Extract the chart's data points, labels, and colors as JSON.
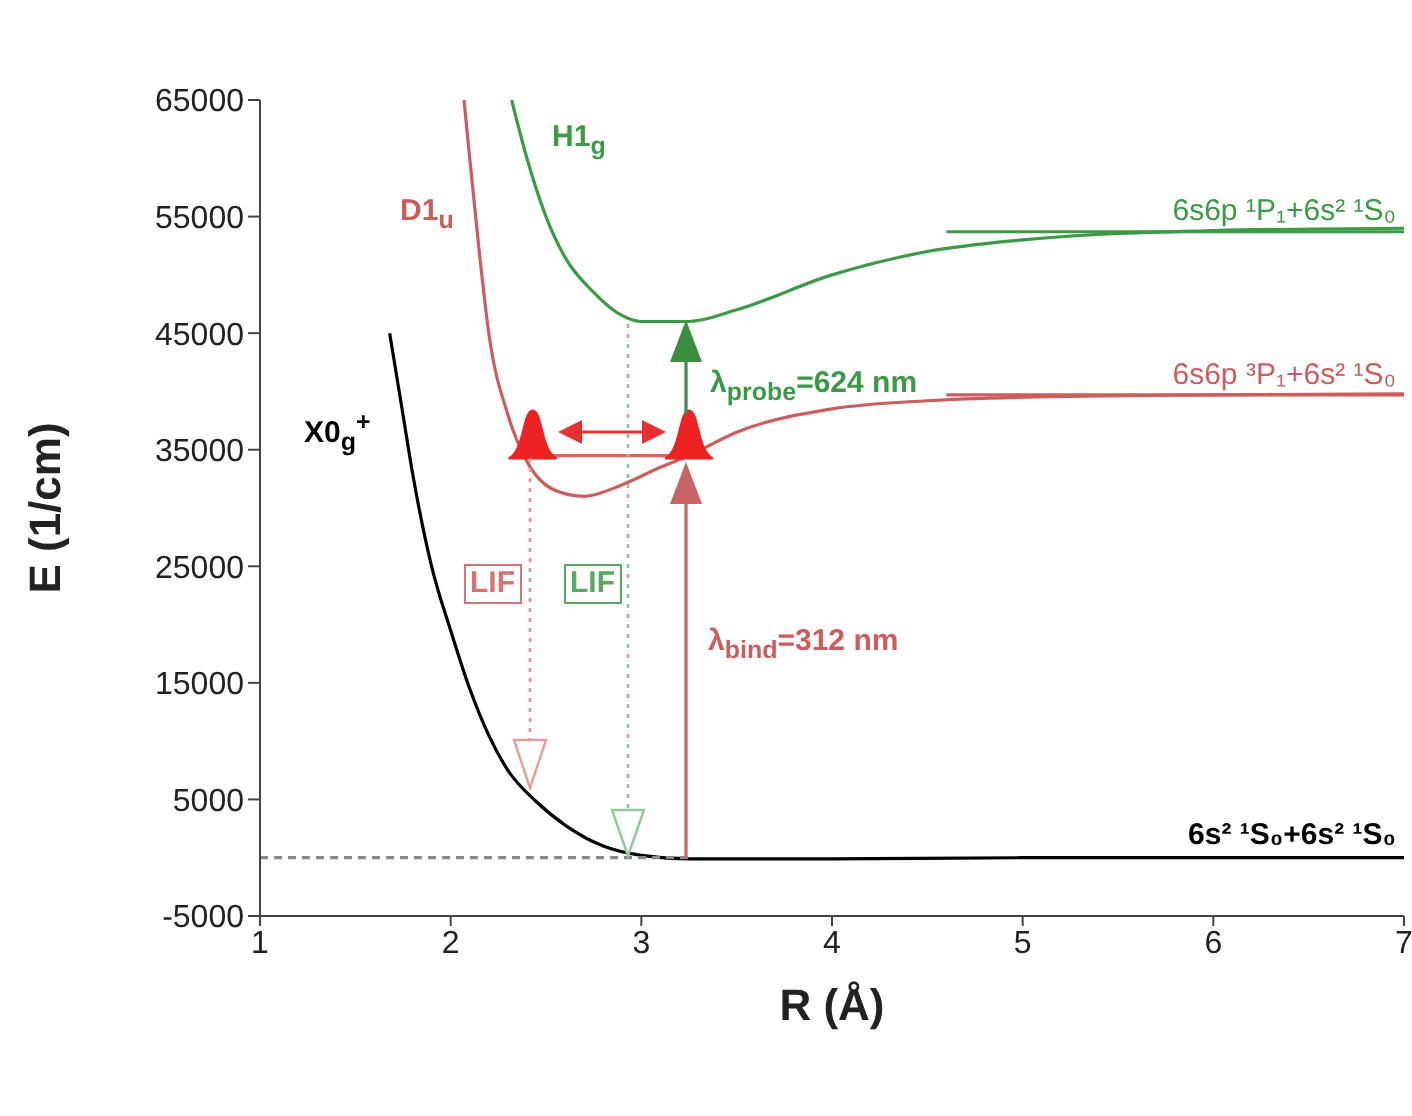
{
  "chart_data": {
    "type": "line",
    "xlabel": "R (Å)",
    "ylabel": "E (1/cm)",
    "xlim": [
      1,
      7
    ],
    "ylim": [
      -5000,
      65000
    ],
    "xticks": [
      1,
      2,
      3,
      4,
      5,
      6,
      7
    ],
    "yticks": [
      -5000,
      5000,
      15000,
      25000,
      35000,
      45000,
      55000,
      65000
    ],
    "series": [
      {
        "color": "#000000",
        "x": [
          1.68,
          1.75,
          1.8,
          1.9,
          2.0,
          2.1,
          2.2,
          2.3,
          2.45,
          2.6,
          2.8,
          3.0,
          3.25,
          3.5,
          4,
          5,
          6,
          7
        ],
        "values": [
          45000,
          38000,
          33000,
          25000,
          19500,
          14500,
          10500,
          7500,
          4800,
          2800,
          1000,
          200,
          -100,
          -100,
          -100,
          0,
          0,
          0
        ]
      },
      {
        "color": "#cd5c5c",
        "x": [
          2.07,
          2.1,
          2.15,
          2.2,
          2.3,
          2.4,
          2.55,
          2.7,
          2.9,
          3.1,
          3.25,
          3.5,
          4,
          4.5,
          5,
          6,
          7
        ],
        "values": [
          65000,
          60000,
          52000,
          45000,
          38000,
          34000,
          31500,
          31000,
          32000,
          33500,
          34500,
          36500,
          38500,
          39200,
          39500,
          39700,
          39800
        ]
      },
      {
        "color": "#3a9a45",
        "x": [
          2.32,
          2.4,
          2.5,
          2.6,
          2.75,
          2.9,
          3.0,
          3.25,
          3.5,
          4,
          4.5,
          5,
          6,
          7
        ],
        "values": [
          65000,
          60000,
          55000,
          51500,
          48500,
          46500,
          46000,
          46000,
          47000,
          50000,
          52000,
          53000,
          53800,
          54000
        ]
      },
      {
        "color": "#3a9a45",
        "x": [
          4.6,
          7
        ],
        "values": [
          53700,
          53700
        ]
      },
      {
        "color": "#cd5c5c",
        "x": [
          4.6,
          7
        ],
        "values": [
          39700,
          39700
        ]
      },
      {
        "color": "#888888",
        "x": [
          1,
          3.25
        ],
        "values": [
          0,
          0
        ],
        "line_style": "dashed"
      },
      {
        "color": "#e06060",
        "x": [
          2.43,
          3.25
        ],
        "values": [
          34500,
          34500
        ]
      },
      {
        "type": "scatter",
        "color": "#ee2222",
        "x": [
          2.43,
          3.25
        ],
        "values": [
          36300,
          36300
        ],
        "marker": "triangle"
      }
    ],
    "annotations": [
      "H1$_{g}$",
      "D1$_{u}$",
      "X0$_{g}$$^{+}$",
      "λ$_{probe}$=624 nm",
      "λ$_{bind}$=312 nm",
      "LIF",
      "LIF",
      "6s6p ¹P₁+6s² ¹S₀",
      "6s6p ³P₁+6s² ¹S₀",
      "6s² ¹S₀+6s² ¹S₀"
    ]
  }
}
